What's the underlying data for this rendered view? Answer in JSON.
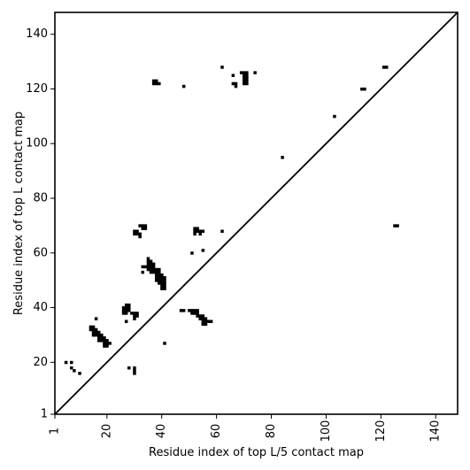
{
  "chart_data": {
    "type": "scatter",
    "title": "",
    "xlabel": "Residue index of top L/5 contact map",
    "ylabel": "Residue index of top L contact map",
    "xlim": [
      1,
      148
    ],
    "ylim": [
      1,
      148
    ],
    "x_ticks": [
      1,
      20,
      40,
      60,
      80,
      100,
      120,
      140
    ],
    "y_ticks": [
      1,
      20,
      40,
      60,
      80,
      100,
      120,
      140
    ],
    "x_tick_rotation": -90,
    "grid": false,
    "diagonal": true,
    "marker_color": "#000000",
    "line_color": "#000000",
    "series": [
      {
        "points": [
          [
            5,
            20
          ],
          [
            7,
            20
          ],
          [
            7,
            18
          ],
          [
            8,
            17
          ],
          [
            10,
            16
          ],
          [
            14,
            33
          ],
          [
            15,
            33
          ],
          [
            14,
            32
          ],
          [
            15,
            32
          ],
          [
            16,
            32
          ],
          [
            15,
            31
          ],
          [
            16,
            31
          ],
          [
            17,
            31
          ],
          [
            15,
            30
          ],
          [
            16,
            30
          ],
          [
            17,
            30
          ],
          [
            18,
            30
          ],
          [
            17,
            29
          ],
          [
            18,
            29
          ],
          [
            19,
            29
          ],
          [
            17,
            28
          ],
          [
            18,
            28
          ],
          [
            19,
            28
          ],
          [
            20,
            28
          ],
          [
            19,
            27
          ],
          [
            20,
            27
          ],
          [
            21,
            27
          ],
          [
            19,
            26
          ],
          [
            20,
            26
          ],
          [
            16,
            36
          ],
          [
            28,
            18
          ],
          [
            30,
            18
          ],
          [
            30,
            17
          ],
          [
            30,
            16
          ],
          [
            26,
            40
          ],
          [
            27,
            41
          ],
          [
            28,
            41
          ],
          [
            27,
            40
          ],
          [
            28,
            40
          ],
          [
            26,
            39
          ],
          [
            27,
            39
          ],
          [
            28,
            39
          ],
          [
            26,
            38
          ],
          [
            27,
            38
          ],
          [
            29,
            38
          ],
          [
            30,
            38
          ],
          [
            31,
            38
          ],
          [
            30,
            37
          ],
          [
            31,
            37
          ],
          [
            30,
            36
          ],
          [
            27,
            35
          ],
          [
            30,
            68
          ],
          [
            31,
            68
          ],
          [
            30,
            67
          ],
          [
            31,
            67
          ],
          [
            32,
            67
          ],
          [
            32,
            66
          ],
          [
            32,
            70
          ],
          [
            33,
            70
          ],
          [
            34,
            70
          ],
          [
            33,
            69
          ],
          [
            34,
            69
          ],
          [
            35,
            58
          ],
          [
            35,
            57
          ],
          [
            36,
            57
          ],
          [
            35,
            56
          ],
          [
            36,
            56
          ],
          [
            37,
            56
          ],
          [
            33,
            55
          ],
          [
            34,
            55
          ],
          [
            35,
            55
          ],
          [
            36,
            55
          ],
          [
            37,
            55
          ],
          [
            35,
            54
          ],
          [
            36,
            54
          ],
          [
            37,
            54
          ],
          [
            38,
            54
          ],
          [
            39,
            54
          ],
          [
            36,
            53
          ],
          [
            37,
            53
          ],
          [
            38,
            53
          ],
          [
            39,
            53
          ],
          [
            33,
            53
          ],
          [
            38,
            52
          ],
          [
            39,
            52
          ],
          [
            40,
            52
          ],
          [
            38,
            51
          ],
          [
            39,
            51
          ],
          [
            40,
            51
          ],
          [
            41,
            51
          ],
          [
            38,
            50
          ],
          [
            39,
            50
          ],
          [
            40,
            50
          ],
          [
            41,
            50
          ],
          [
            39,
            49
          ],
          [
            40,
            49
          ],
          [
            41,
            49
          ],
          [
            40,
            48
          ],
          [
            41,
            48
          ],
          [
            40,
            47
          ],
          [
            41,
            47
          ],
          [
            41,
            27
          ],
          [
            37,
            123
          ],
          [
            38,
            123
          ],
          [
            37,
            122
          ],
          [
            38,
            122
          ],
          [
            39,
            122
          ],
          [
            48,
            121
          ],
          [
            47,
            39
          ],
          [
            48,
            39
          ],
          [
            50,
            39
          ],
          [
            51,
            39
          ],
          [
            52,
            39
          ],
          [
            53,
            39
          ],
          [
            51,
            38
          ],
          [
            52,
            38
          ],
          [
            53,
            38
          ],
          [
            53,
            37
          ],
          [
            54,
            37
          ],
          [
            55,
            37
          ],
          [
            54,
            36
          ],
          [
            55,
            36
          ],
          [
            56,
            36
          ],
          [
            55,
            35
          ],
          [
            56,
            35
          ],
          [
            57,
            35
          ],
          [
            58,
            35
          ],
          [
            55,
            34
          ],
          [
            56,
            34
          ],
          [
            52,
            69
          ],
          [
            53,
            69
          ],
          [
            52,
            68
          ],
          [
            53,
            68
          ],
          [
            54,
            68
          ],
          [
            55,
            68
          ],
          [
            52,
            67
          ],
          [
            54,
            67
          ],
          [
            55,
            61
          ],
          [
            51,
            60
          ],
          [
            62,
            68
          ],
          [
            62,
            128
          ],
          [
            66,
            125
          ],
          [
            66,
            122
          ],
          [
            67,
            122
          ],
          [
            67,
            121
          ],
          [
            69,
            126
          ],
          [
            70,
            126
          ],
          [
            71,
            126
          ],
          [
            70,
            125
          ],
          [
            71,
            125
          ],
          [
            70,
            124
          ],
          [
            71,
            124
          ],
          [
            70,
            123
          ],
          [
            71,
            123
          ],
          [
            70,
            122
          ],
          [
            71,
            122
          ],
          [
            74,
            126
          ],
          [
            84,
            95
          ],
          [
            103,
            110
          ],
          [
            113,
            120
          ],
          [
            114,
            120
          ],
          [
            121,
            128
          ],
          [
            122,
            128
          ],
          [
            125,
            70
          ],
          [
            126,
            70
          ]
        ]
      }
    ]
  }
}
